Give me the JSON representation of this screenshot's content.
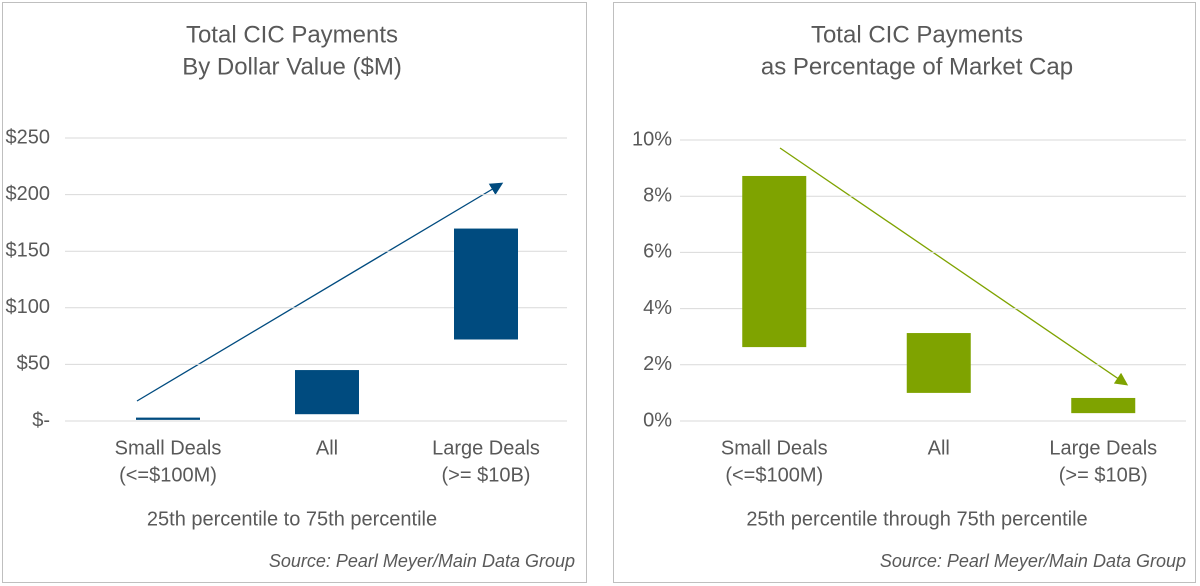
{
  "chart_data": [
    {
      "type": "floating-bar",
      "title": [
        "Total CIC Payments",
        "By Dollar Value ($M)"
      ],
      "categories": [
        [
          "Small Deals",
          "(<=$100M)"
        ],
        [
          "All"
        ],
        [
          "Large Deals",
          "(>= $10B)"
        ]
      ],
      "low": [
        1,
        6,
        72
      ],
      "high": [
        3,
        45,
        170
      ],
      "color": "#004b7f",
      "ylim": [
        0,
        250
      ],
      "yticks": [
        {
          "value": 0,
          "label": "$-"
        },
        {
          "value": 50,
          "label": "$50"
        },
        {
          "value": 100,
          "label": "$100"
        },
        {
          "value": 150,
          "label": "$150"
        },
        {
          "value": 200,
          "label": "$200"
        },
        {
          "value": 250,
          "label": "$250"
        }
      ],
      "grid": true,
      "xlabel": "25th percentile to 75th percentile",
      "source": "Source: Pearl Meyer/Main Data Group"
    },
    {
      "type": "floating-bar",
      "title": [
        "Total CIC Payments",
        "as Percentage of Market Cap"
      ],
      "categories": [
        [
          "Small Deals",
          "(<=$100M)"
        ],
        [
          "All"
        ],
        [
          "Large Deals",
          "(>= $10B)"
        ]
      ],
      "low": [
        2.63,
        1.0,
        0.28
      ],
      "high": [
        8.72,
        3.13,
        0.82
      ],
      "color": "#7fa300",
      "ylim": [
        0,
        10
      ],
      "yticks": [
        {
          "value": 0,
          "label": "0%"
        },
        {
          "value": 2,
          "label": "2%"
        },
        {
          "value": 4,
          "label": "4%"
        },
        {
          "value": 6,
          "label": "6%"
        },
        {
          "value": 8,
          "label": "8%"
        },
        {
          "value": 10,
          "label": "10%"
        }
      ],
      "grid": true,
      "xlabel": "25th percentile through 75th percentile",
      "source": "Source: Pearl Meyer/Main Data Group"
    }
  ]
}
